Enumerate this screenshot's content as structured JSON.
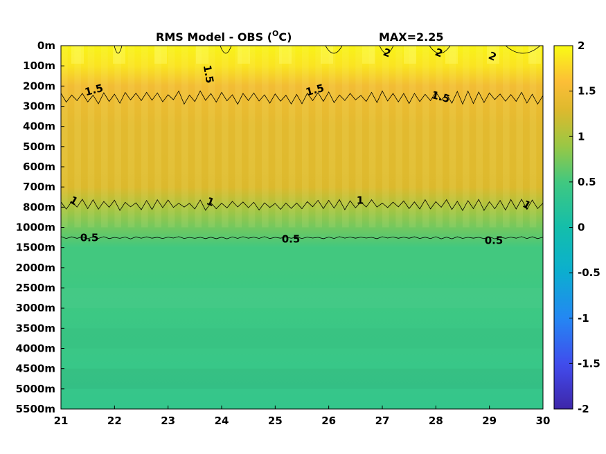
{
  "chart_data": {
    "type": "heatmap",
    "title": "RMS Model - OBS (",
    "title_sup": "O",
    "title_unit_tail": "C)",
    "max_label": "MAX=2.25",
    "x_ticks": [
      "21",
      "22",
      "23",
      "24",
      "25",
      "26",
      "27",
      "28",
      "29",
      "30"
    ],
    "xlim": [
      21,
      30
    ],
    "y_ticks": [
      "0m",
      "100m",
      "200m",
      "300m",
      "400m",
      "500m",
      "600m",
      "700m",
      "800m",
      "1000m",
      "1500m",
      "2000m",
      "2500m",
      "3000m",
      "3500m",
      "4000m",
      "4500m",
      "5000m",
      "5500m"
    ],
    "colorbar": {
      "range": [
        -2,
        2
      ],
      "ticks": [
        "2",
        "1.5",
        "1",
        "0.5",
        "0",
        "-0.5",
        "-1",
        "-1.5",
        "-2"
      ],
      "colormap": "parula"
    },
    "depth_profile": {
      "depths": [
        "0m",
        "100m",
        "200m",
        "300m",
        "400m",
        "500m",
        "600m",
        "700m",
        "800m",
        "1000m",
        "1500m",
        "2000m",
        "2500m",
        "3000m",
        "3500m",
        "4000m",
        "4500m",
        "5000m",
        "5500m"
      ],
      "values": [
        1.95,
        1.85,
        1.5,
        1.42,
        1.35,
        1.33,
        1.32,
        1.28,
        1.0,
        0.72,
        0.5,
        0.5,
        0.48,
        0.47,
        0.45,
        0.43,
        0.41,
        0.39,
        0.37
      ]
    },
    "contours": [
      {
        "level": "2",
        "labels": [
          "2",
          "2",
          "2"
        ]
      },
      {
        "level": "1.5",
        "labels": [
          "1.5",
          "1.5",
          "1.5",
          "1.5"
        ]
      },
      {
        "level": "1",
        "labels": [
          "1",
          "1",
          "1",
          "1"
        ]
      },
      {
        "level": "0.5",
        "labels": [
          "0.5",
          "0.5",
          "0.5"
        ]
      }
    ]
  }
}
